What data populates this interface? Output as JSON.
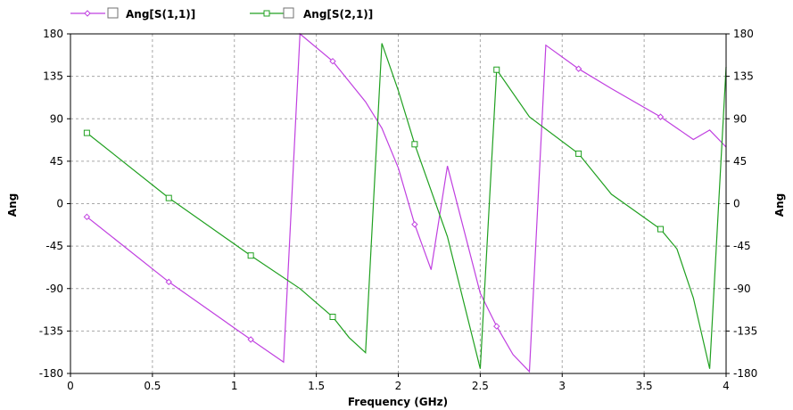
{
  "chart_data": {
    "type": "line",
    "xlabel": "Frequency (GHz)",
    "ylabel_left": "Ang",
    "ylabel_right": "Ang",
    "xlim": [
      0,
      4
    ],
    "ylim": [
      -180,
      180
    ],
    "x_ticks": [
      "0",
      "0.5",
      "1",
      "1.5",
      "2",
      "2.5",
      "3",
      "3.5",
      "4"
    ],
    "y_ticks": [
      "180",
      "135",
      "90",
      "45",
      "0",
      "-45",
      "-90",
      "-135",
      "-180"
    ],
    "grid": true,
    "legend_position": "top-left",
    "series": [
      {
        "name": "Ang[S(1,1)]",
        "color": "#c040e0",
        "marker": "diamond",
        "points": [
          [
            0.1,
            -14
          ],
          [
            0.6,
            -83
          ],
          [
            1.1,
            -144
          ],
          [
            1.3,
            -168
          ],
          [
            1.4,
            180
          ],
          [
            1.6,
            151
          ],
          [
            1.8,
            108
          ],
          [
            1.9,
            80
          ],
          [
            2.0,
            38
          ],
          [
            2.1,
            -22
          ],
          [
            2.2,
            -70
          ],
          [
            2.3,
            40
          ],
          [
            2.5,
            -95
          ],
          [
            2.6,
            -130
          ],
          [
            2.7,
            -160
          ],
          [
            2.8,
            -178
          ],
          [
            2.9,
            168
          ],
          [
            3.1,
            143
          ],
          [
            3.3,
            122
          ],
          [
            3.6,
            92
          ],
          [
            3.8,
            68
          ],
          [
            3.9,
            78
          ],
          [
            4.0,
            60
          ]
        ],
        "marker_x": [
          0.1,
          0.6,
          1.1,
          1.6,
          2.1,
          2.6,
          3.1,
          3.6
        ]
      },
      {
        "name": "Ang[S(2,1)]",
        "color": "#20a020",
        "marker": "square",
        "points": [
          [
            0.1,
            75
          ],
          [
            0.6,
            6
          ],
          [
            1.1,
            -55
          ],
          [
            1.4,
            -90
          ],
          [
            1.6,
            -120
          ],
          [
            1.7,
            -142
          ],
          [
            1.8,
            -158
          ],
          [
            1.9,
            170
          ],
          [
            2.0,
            120
          ],
          [
            2.1,
            63
          ],
          [
            2.3,
            -35
          ],
          [
            2.5,
            -175
          ],
          [
            2.6,
            142
          ],
          [
            2.8,
            92
          ],
          [
            3.1,
            53
          ],
          [
            3.3,
            10
          ],
          [
            3.6,
            -27
          ],
          [
            3.7,
            -48
          ],
          [
            3.8,
            -100
          ],
          [
            3.9,
            -175
          ],
          [
            4.0,
            145
          ]
        ],
        "marker_x": [
          0.1,
          0.6,
          1.1,
          1.6,
          2.1,
          2.6,
          3.1,
          3.6
        ]
      }
    ]
  }
}
